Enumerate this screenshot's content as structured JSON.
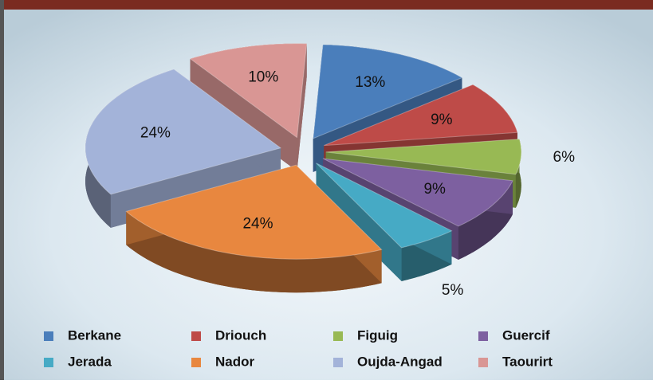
{
  "chart_data": {
    "type": "pie",
    "categories": [
      "Berkane",
      "Driouch",
      "Figuig",
      "Guercif",
      "Jerada",
      "Nador",
      "Oujda-Angad",
      "Taourirt"
    ],
    "values": [
      13,
      9,
      6,
      9,
      5,
      24,
      24,
      10
    ],
    "value_labels": [
      "13%",
      "9%",
      "6%",
      "9%",
      "5%",
      "24%",
      "24%",
      "10%"
    ],
    "colors": [
      "#4a7ebb",
      "#be4b48",
      "#98b954",
      "#7d60a0",
      "#46aac5",
      "#e8873f",
      "#a3b3d9",
      "#d99694"
    ],
    "legend": "bottom"
  }
}
